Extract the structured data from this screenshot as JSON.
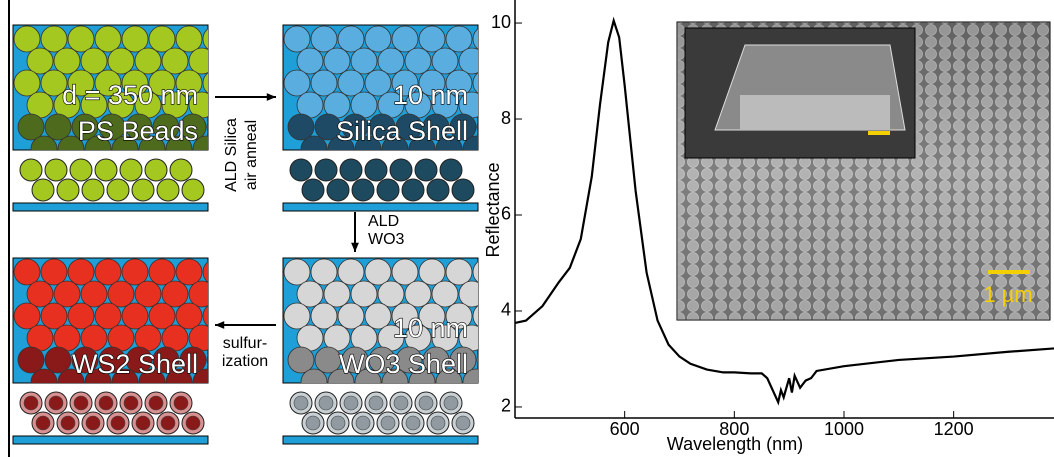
{
  "diagram": {
    "panels": [
      {
        "top_label": "d = 350 nm",
        "bottom_label": "PS Beads"
      },
      {
        "top_label": "10 nm",
        "bottom_label": "Silica Shell"
      },
      {
        "top_label": "10 nm",
        "bottom_label": "WO3 Shell"
      },
      {
        "bottom_label": "WS2 Shell"
      }
    ],
    "steps": [
      [
        "ALD Silica",
        "air anneal"
      ],
      [
        "ALD",
        "WO3"
      ],
      [
        "sulfur-",
        "ization"
      ]
    ]
  },
  "chart_data": {
    "type": "line",
    "xlabel": "Wavelength (nm)",
    "ylabel": "Reflectance",
    "inset_scale_label": "1 µm",
    "xlim": [
      400,
      1383
    ],
    "ylim": [
      1.77,
      10.48
    ],
    "xticks": [
      600,
      800,
      1000,
      1200
    ],
    "yticks": [
      2,
      4,
      6,
      8,
      10
    ],
    "x": [
      400,
      420,
      450,
      480,
      500,
      520,
      540,
      555,
      570,
      580,
      590,
      600,
      620,
      640,
      660,
      680,
      700,
      720,
      750,
      780,
      800,
      830,
      850,
      860,
      870,
      880,
      885,
      890,
      900,
      905,
      910,
      920,
      930,
      940,
      950,
      1000,
      1100,
      1200,
      1300,
      1383
    ],
    "series": [
      {
        "color": "#000000",
        "values": [
          3.75,
          3.8,
          4.1,
          4.6,
          4.9,
          5.5,
          6.8,
          8.3,
          9.6,
          10.05,
          9.7,
          8.7,
          6.5,
          4.8,
          3.8,
          3.3,
          3.05,
          2.9,
          2.78,
          2.72,
          2.72,
          2.7,
          2.7,
          2.6,
          2.35,
          2.1,
          2.35,
          2.2,
          2.6,
          2.3,
          2.65,
          2.4,
          2.55,
          2.6,
          2.75,
          2.85,
          2.98,
          3.05,
          3.15,
          3.22
        ]
      }
    ]
  }
}
